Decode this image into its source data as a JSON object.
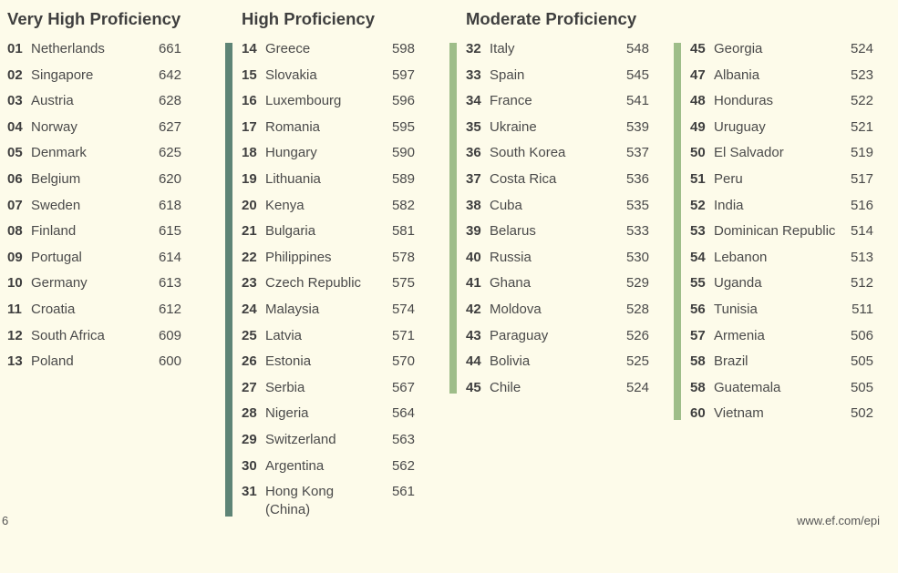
{
  "headings": {
    "very_high": "Very High Proficiency",
    "high": "High Proficiency",
    "moderate": "Moderate Proficiency"
  },
  "colors": {
    "background": "#fdfbea",
    "high_bar": "#5e8476",
    "moderate_bar": "#9ebd89"
  },
  "columns": [
    {
      "key": "very_high",
      "rows": [
        {
          "rank": "01",
          "country": "Netherlands",
          "score": "661"
        },
        {
          "rank": "02",
          "country": "Singapore",
          "score": "642"
        },
        {
          "rank": "03",
          "country": "Austria",
          "score": "628"
        },
        {
          "rank": "04",
          "country": "Norway",
          "score": "627"
        },
        {
          "rank": "05",
          "country": "Denmark",
          "score": "625"
        },
        {
          "rank": "06",
          "country": "Belgium",
          "score": "620"
        },
        {
          "rank": "07",
          "country": "Sweden",
          "score": "618"
        },
        {
          "rank": "08",
          "country": "Finland",
          "score": "615"
        },
        {
          "rank": "09",
          "country": "Portugal",
          "score": "614"
        },
        {
          "rank": "10",
          "country": "Germany",
          "score": "613"
        },
        {
          "rank": "11",
          "country": "Croatia",
          "score": "612"
        },
        {
          "rank": "12",
          "country": "South Africa",
          "score": "609"
        },
        {
          "rank": "13",
          "country": "Poland",
          "score": "600"
        }
      ]
    },
    {
      "key": "high",
      "rows": [
        {
          "rank": "14",
          "country": "Greece",
          "score": "598"
        },
        {
          "rank": "15",
          "country": "Slovakia",
          "score": "597"
        },
        {
          "rank": "16",
          "country": "Luxembourg",
          "score": "596"
        },
        {
          "rank": "17",
          "country": "Romania",
          "score": "595"
        },
        {
          "rank": "18",
          "country": "Hungary",
          "score": "590"
        },
        {
          "rank": "19",
          "country": "Lithuania",
          "score": "589"
        },
        {
          "rank": "20",
          "country": "Kenya",
          "score": "582"
        },
        {
          "rank": "21",
          "country": "Bulgaria",
          "score": "581"
        },
        {
          "rank": "22",
          "country": "Philippines",
          "score": "578"
        },
        {
          "rank": "23",
          "country": "Czech Republic",
          "score": "575"
        },
        {
          "rank": "24",
          "country": "Malaysia",
          "score": "574"
        },
        {
          "rank": "25",
          "country": "Latvia",
          "score": "571"
        },
        {
          "rank": "26",
          "country": "Estonia",
          "score": "570"
        },
        {
          "rank": "27",
          "country": "Serbia",
          "score": "567"
        },
        {
          "rank": "28",
          "country": "Nigeria",
          "score": "564"
        },
        {
          "rank": "29",
          "country": "Switzerland",
          "score": "563"
        },
        {
          "rank": "30",
          "country": "Argentina",
          "score": "562"
        },
        {
          "rank": "31",
          "country": "Hong Kong (China)",
          "score": "561"
        }
      ]
    },
    {
      "key": "moderate_a",
      "rows": [
        {
          "rank": "32",
          "country": "Italy",
          "score": "548"
        },
        {
          "rank": "33",
          "country": "Spain",
          "score": "545"
        },
        {
          "rank": "34",
          "country": "France",
          "score": "541"
        },
        {
          "rank": "35",
          "country": "Ukraine",
          "score": "539"
        },
        {
          "rank": "36",
          "country": "South Korea",
          "score": "537"
        },
        {
          "rank": "37",
          "country": "Costa Rica",
          "score": "536"
        },
        {
          "rank": "38",
          "country": "Cuba",
          "score": "535"
        },
        {
          "rank": "39",
          "country": "Belarus",
          "score": "533"
        },
        {
          "rank": "40",
          "country": "Russia",
          "score": "530"
        },
        {
          "rank": "41",
          "country": "Ghana",
          "score": "529"
        },
        {
          "rank": "42",
          "country": "Moldova",
          "score": "528"
        },
        {
          "rank": "43",
          "country": "Paraguay",
          "score": "526"
        },
        {
          "rank": "44",
          "country": "Bolivia",
          "score": "525"
        },
        {
          "rank": "45",
          "country": "Chile",
          "score": "524"
        }
      ]
    },
    {
      "key": "moderate_b",
      "rows": [
        {
          "rank": "45",
          "country": "Georgia",
          "score": "524"
        },
        {
          "rank": "47",
          "country": "Albania",
          "score": "523"
        },
        {
          "rank": "48",
          "country": "Honduras",
          "score": "522"
        },
        {
          "rank": "49",
          "country": "Uruguay",
          "score": "521"
        },
        {
          "rank": "50",
          "country": "El Salvador",
          "score": "519"
        },
        {
          "rank": "51",
          "country": "Peru",
          "score": "517"
        },
        {
          "rank": "52",
          "country": "India",
          "score": "516"
        },
        {
          "rank": "53",
          "country": "Dominican Republic",
          "score": "514"
        },
        {
          "rank": "54",
          "country": "Lebanon",
          "score": "513"
        },
        {
          "rank": "55",
          "country": "Uganda",
          "score": "512"
        },
        {
          "rank": "56",
          "country": "Tunisia",
          "score": "511"
        },
        {
          "rank": "57",
          "country": "Armenia",
          "score": "506"
        },
        {
          "rank": "58",
          "country": "Brazil",
          "score": "505"
        },
        {
          "rank": "58",
          "country": "Guatemala",
          "score": "505"
        },
        {
          "rank": "60",
          "country": "Vietnam",
          "score": "502"
        }
      ]
    }
  ],
  "footer": {
    "page_number": "6",
    "url": "www.ef.com/epi"
  }
}
